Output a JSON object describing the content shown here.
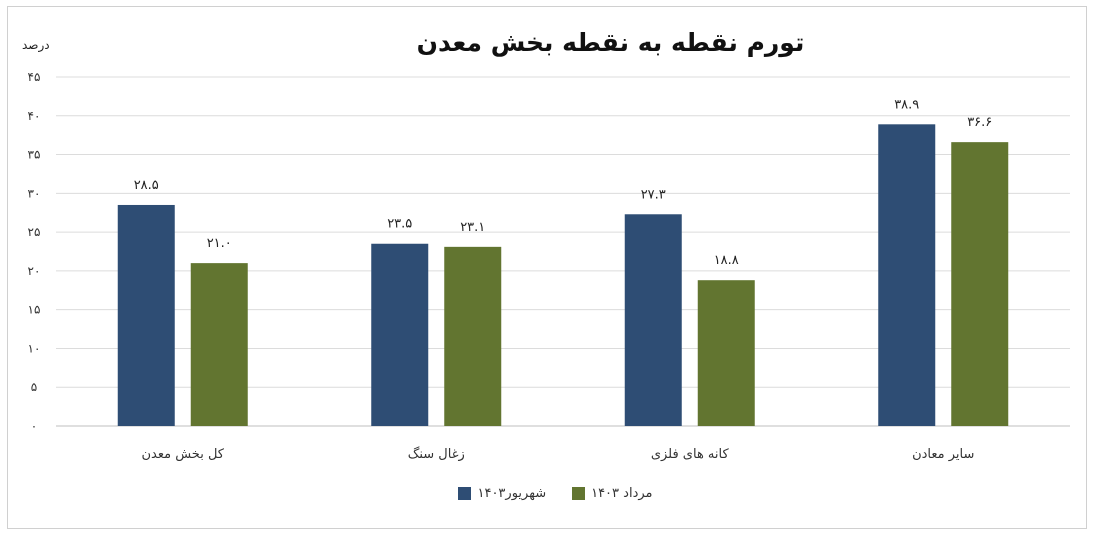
{
  "chart_data": {
    "type": "bar",
    "title": "تورم نقطه به نقطه بخش معدن",
    "ylabel": "درصد",
    "ylim": [
      0,
      45
    ],
    "yticks": [
      0,
      5,
      10,
      15,
      20,
      25,
      30,
      35,
      40,
      45
    ],
    "ytick_labels": [
      "۰",
      "۵",
      "۱۰",
      "۱۵",
      "۲۰",
      "۲۵",
      "۳۰",
      "۳۵",
      "۴۰",
      "۴۵"
    ],
    "grid": true,
    "legend_position": "bottom",
    "categories": [
      "کل بخش معدن",
      "زغال سنگ",
      "کانه های فلزی",
      "سایر معادن"
    ],
    "series": [
      {
        "name": "شهریور۱۴۰۳",
        "color": "#2e4d74",
        "values": [
          28.5,
          23.5,
          27.3,
          38.9
        ],
        "labels": [
          "۲۸.۵",
          "۲۳.۵",
          "۲۷.۳",
          "۳۸.۹"
        ]
      },
      {
        "name": "مرداد ۱۴۰۳",
        "color": "#627530",
        "values": [
          21.0,
          23.1,
          18.8,
          36.6
        ],
        "labels": [
          "۲۱.۰",
          "۲۳.۱",
          "۱۸.۸",
          "۳۶.۶"
        ]
      }
    ]
  }
}
